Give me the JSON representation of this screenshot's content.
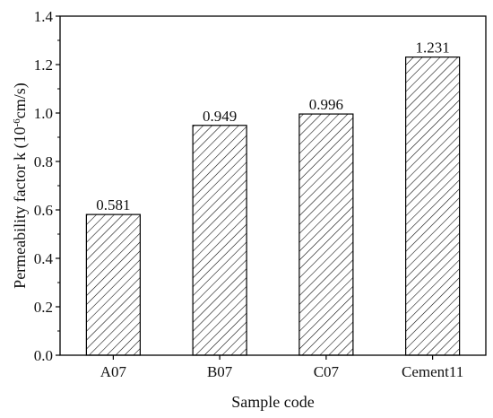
{
  "chart_data": {
    "type": "bar",
    "categories": [
      "A07",
      "B07",
      "C07",
      "Cement11"
    ],
    "values": [
      0.581,
      0.949,
      0.996,
      1.231
    ],
    "data_labels": [
      "0.581",
      "0.949",
      "0.996",
      "1.231"
    ],
    "title": "",
    "xlabel": "Sample code",
    "ylabel_main": "Permeability factor k (10",
    "ylabel_sup": "-6",
    "ylabel_tail": "cm/s)",
    "ylim": [
      0.0,
      1.4
    ],
    "yticks": [
      "0.0",
      "0.2",
      "0.4",
      "0.6",
      "0.8",
      "1.0",
      "1.2",
      "1.4"
    ],
    "grid": false,
    "legend": "none",
    "bar_fill": "hatched diagonal",
    "colors": {
      "bar_stroke": "#000000",
      "hatch": "#000000",
      "axis": "#000000"
    }
  }
}
